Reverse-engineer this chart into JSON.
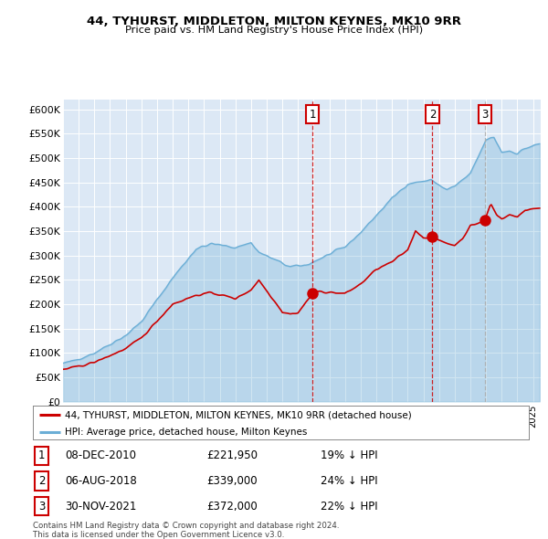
{
  "title1": "44, TYHURST, MIDDLETON, MILTON KEYNES, MK10 9RR",
  "title2": "Price paid vs. HM Land Registry's House Price Index (HPI)",
  "ylabel_ticks": [
    "£0",
    "£50K",
    "£100K",
    "£150K",
    "£200K",
    "£250K",
    "£300K",
    "£350K",
    "£400K",
    "£450K",
    "£500K",
    "£550K",
    "£600K"
  ],
  "ytick_values": [
    0,
    50000,
    100000,
    150000,
    200000,
    250000,
    300000,
    350000,
    400000,
    450000,
    500000,
    550000,
    600000
  ],
  "hpi_color": "#6baed6",
  "price_color": "#cc0000",
  "bg_color": "#dce8f5",
  "transactions": [
    {
      "date": 2010.93,
      "price": 221950,
      "label": "1",
      "vline_color": "#cc0000",
      "vline_style": "--"
    },
    {
      "date": 2018.58,
      "price": 339000,
      "label": "2",
      "vline_color": "#cc0000",
      "vline_style": "--"
    },
    {
      "date": 2021.92,
      "price": 372000,
      "label": "3",
      "vline_color": "#aaaaaa",
      "vline_style": "--"
    }
  ],
  "transaction_dates_str": [
    "08-DEC-2010",
    "06-AUG-2018",
    "30-NOV-2021"
  ],
  "transaction_prices_str": [
    "£221,950",
    "£339,000",
    "£372,000"
  ],
  "transaction_pcts": [
    "19% ↓ HPI",
    "24% ↓ HPI",
    "22% ↓ HPI"
  ],
  "legend_label1": "44, TYHURST, MIDDLETON, MILTON KEYNES, MK10 9RR (detached house)",
  "legend_label2": "HPI: Average price, detached house, Milton Keynes",
  "footer1": "Contains HM Land Registry data © Crown copyright and database right 2024.",
  "footer2": "This data is licensed under the Open Government Licence v3.0.",
  "xmin": 1995,
  "xmax": 2025.5,
  "ymin": 0,
  "ymax": 620000
}
